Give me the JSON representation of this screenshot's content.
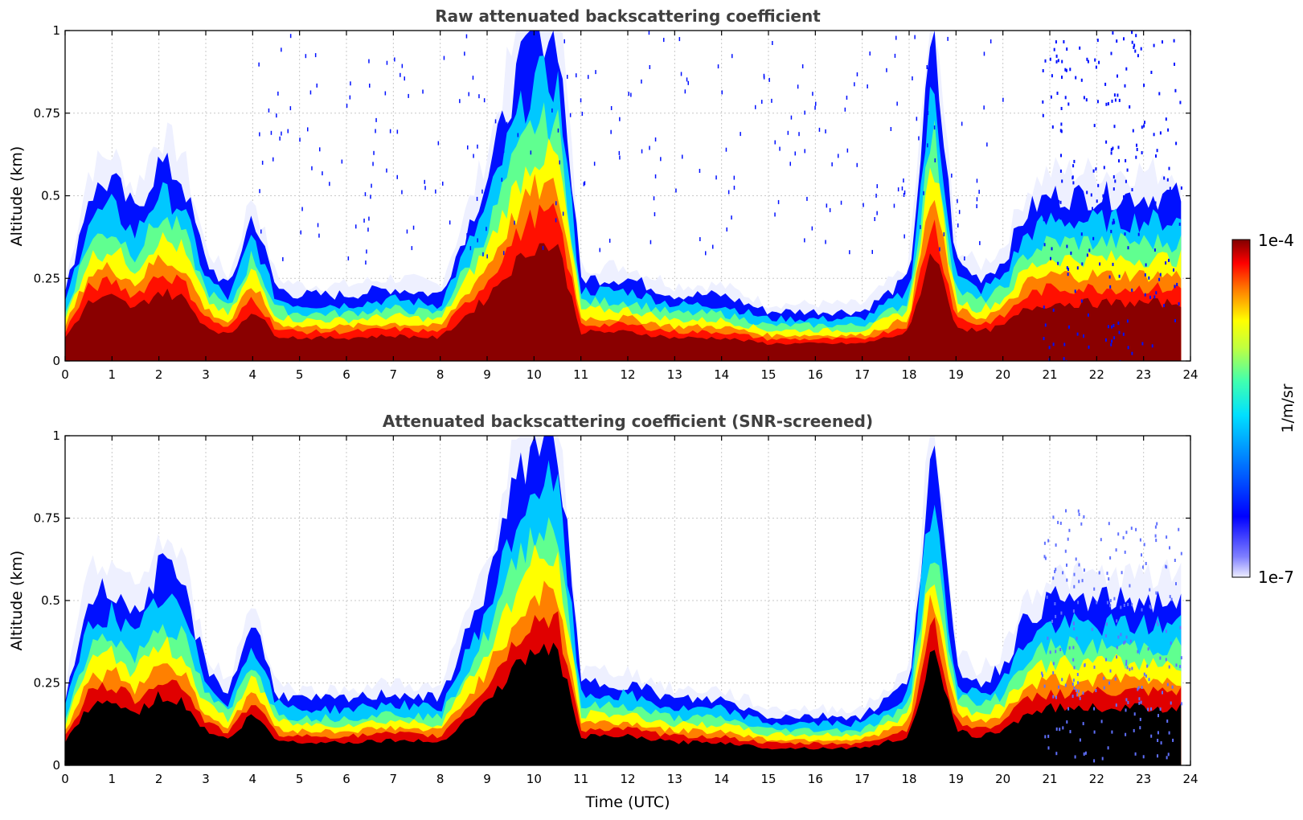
{
  "chart_data": [
    {
      "type": "heatmap",
      "title": "Raw attenuated backscattering coefficient",
      "ylabel": "Altitude (km)",
      "xlabel": "",
      "xlim": [
        0,
        24
      ],
      "ylim": [
        0,
        1
      ],
      "x_ticks": [
        "0",
        "1",
        "2",
        "3",
        "4",
        "5",
        "6",
        "7",
        "8",
        "9",
        "10",
        "11",
        "12",
        "13",
        "14",
        "15",
        "16",
        "17",
        "18",
        "19",
        "20",
        "21",
        "22",
        "23",
        "24"
      ],
      "y_ticks": [
        "0",
        "0.25",
        "0.5",
        "0.75",
        "1"
      ],
      "grid": true,
      "layer_top_km": {
        "time_utc": [
          0,
          0.5,
          1,
          1.5,
          2,
          2.5,
          3,
          3.5,
          4,
          4.5,
          5,
          6,
          7,
          8,
          9,
          9.5,
          10,
          10.5,
          11,
          12,
          13,
          14,
          15,
          16,
          17,
          18,
          18.5,
          19,
          19.5,
          20,
          20.5,
          21
        ],
        "altitude_km": [
          0.2,
          0.5,
          0.55,
          0.45,
          0.6,
          0.55,
          0.3,
          0.22,
          0.45,
          0.22,
          0.2,
          0.2,
          0.22,
          0.2,
          0.55,
          0.8,
          1.0,
          1.0,
          0.25,
          0.25,
          0.2,
          0.2,
          0.15,
          0.15,
          0.15,
          0.25,
          1.0,
          0.3,
          0.25,
          0.3,
          0.45,
          0.5
        ]
      }
    },
    {
      "type": "heatmap",
      "title": "Attenuated backscattering coefficient (SNR-screened)",
      "ylabel": "Altitude (km)",
      "xlabel": "Time (UTC)",
      "xlim": [
        0,
        24
      ],
      "ylim": [
        0,
        1
      ],
      "x_ticks": [
        "0",
        "1",
        "2",
        "3",
        "4",
        "5",
        "6",
        "7",
        "8",
        "9",
        "10",
        "11",
        "12",
        "13",
        "14",
        "15",
        "16",
        "17",
        "18",
        "19",
        "20",
        "21",
        "22",
        "23",
        "24"
      ],
      "y_ticks": [
        "0",
        "0.25",
        "0.5",
        "0.75",
        "1"
      ],
      "grid": true,
      "layer_top_km": {
        "time_utc": [
          0,
          0.5,
          1,
          1.5,
          2,
          2.5,
          3,
          3.5,
          4,
          4.5,
          5,
          6,
          7,
          8,
          9,
          9.5,
          10,
          10.5,
          11,
          12,
          13,
          14,
          15,
          16,
          17,
          18,
          18.5,
          19,
          19.5,
          20,
          20.5,
          21
        ],
        "altitude_km": [
          0.2,
          0.5,
          0.55,
          0.45,
          0.6,
          0.55,
          0.3,
          0.22,
          0.45,
          0.22,
          0.2,
          0.2,
          0.22,
          0.2,
          0.55,
          0.8,
          1.0,
          1.0,
          0.25,
          0.25,
          0.2,
          0.2,
          0.15,
          0.15,
          0.15,
          0.25,
          1.0,
          0.3,
          0.25,
          0.3,
          0.45,
          0.5
        ]
      }
    }
  ],
  "colorbar": {
    "label": "1/m/sr",
    "max_label": "1e-4",
    "min_label": "1e-7",
    "scale": "log",
    "colors": [
      "#eeeeff",
      "#0000ff",
      "#00bfff",
      "#00ffcc",
      "#ffff00",
      "#ff8000",
      "#ff0000",
      "#800000"
    ]
  }
}
